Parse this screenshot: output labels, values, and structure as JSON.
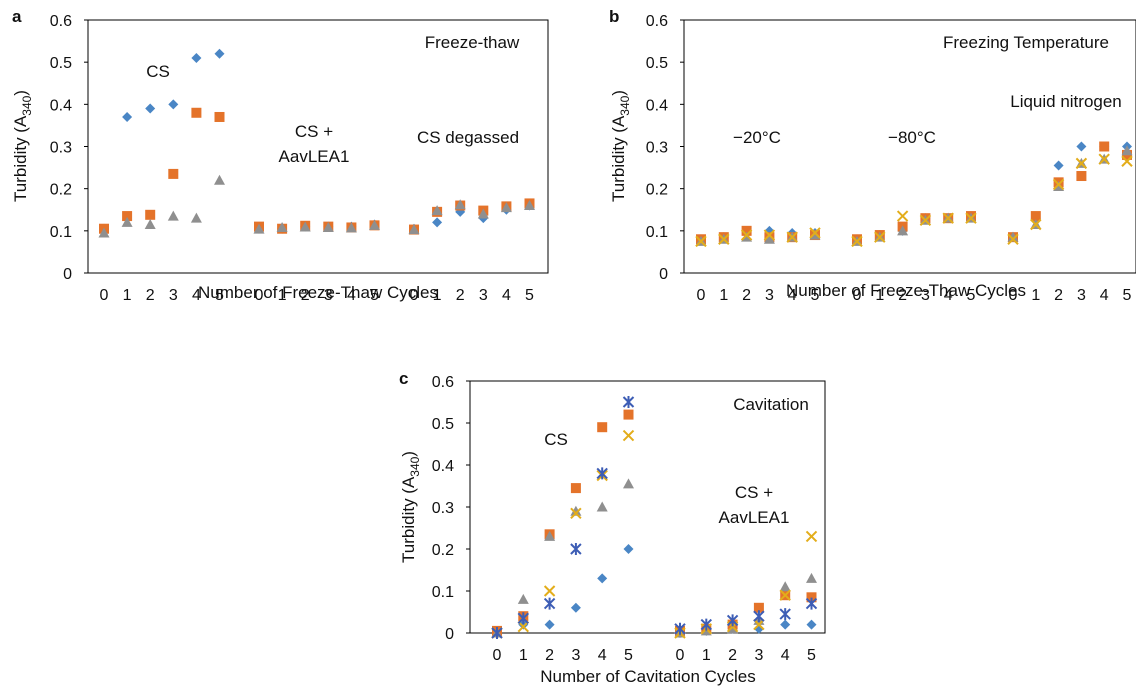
{
  "chart_data": [
    {
      "type": "scatter",
      "panel": "a",
      "ylabel": "Turbidity (A340)",
      "ylabel_main": "Turbidity (A",
      "ylabel_sub": "340",
      "ylabel_close": ")",
      "xlabel": "Number of Freeze-Thaw Cycles",
      "ylim": [
        0,
        0.6
      ],
      "yticks": [
        "0",
        "0.1",
        "0.2",
        "0.3",
        "0.4",
        "0.5",
        "0.6"
      ],
      "groups": [
        {
          "label": "CS",
          "x": [
            "0",
            "1",
            "2",
            "3",
            "4",
            "5"
          ]
        },
        {
          "label": "CS + AavLEA1",
          "x": [
            "0",
            "1",
            "2",
            "3",
            "4",
            "5"
          ]
        },
        {
          "label": "CS degassed",
          "x": [
            "0",
            "1",
            "2",
            "3",
            "4",
            "5"
          ]
        }
      ],
      "annotations": [
        "Freeze-thaw",
        "CS",
        "CS +",
        "AavLEA1",
        "CS degassed"
      ],
      "series": [
        {
          "marker": "diamond",
          "color": "#4a86c5",
          "values": [
            [
              0.105,
              0.37,
              0.39,
              0.4,
              0.51,
              0.52
            ],
            [
              0.105,
              0.105,
              0.11,
              0.11,
              0.11,
              0.115
            ],
            [
              0.105,
              0.12,
              0.145,
              0.13,
              0.15,
              0.16
            ]
          ]
        },
        {
          "marker": "square",
          "color": "#e4732a",
          "values": [
            [
              0.105,
              0.135,
              0.138,
              0.235,
              0.38,
              0.37
            ],
            [
              0.11,
              0.105,
              0.112,
              0.11,
              0.108,
              0.113
            ],
            [
              0.103,
              0.145,
              0.16,
              0.148,
              0.158,
              0.165
            ]
          ]
        },
        {
          "marker": "triangle",
          "color": "#8f8f8f",
          "values": [
            [
              0.095,
              0.12,
              0.115,
              0.135,
              0.13,
              0.22
            ],
            [
              0.104,
              0.108,
              0.109,
              0.108,
              0.107,
              0.113
            ],
            [
              0.103,
              0.148,
              0.162,
              0.14,
              0.155,
              0.16
            ]
          ]
        }
      ]
    },
    {
      "type": "scatter",
      "panel": "b",
      "ylabel": "Turbidity (A340)",
      "ylabel_main": "Turbidity (A",
      "ylabel_sub": "340",
      "ylabel_close": ")",
      "xlabel": "Number of Freeze-Thaw Cycles",
      "ylim": [
        0,
        0.6
      ],
      "yticks": [
        "0",
        "0.1",
        "0.2",
        "0.3",
        "0.4",
        "0.5",
        "0.6"
      ],
      "groups": [
        {
          "label": "−20°C",
          "x": [
            "0",
            "1",
            "2",
            "3",
            "4",
            "5"
          ]
        },
        {
          "label": "−80°C",
          "x": [
            "0",
            "1",
            "2",
            "3",
            "4",
            "5"
          ]
        },
        {
          "label": "Liquid nitrogen",
          "x": [
            "0",
            "1",
            "2",
            "3",
            "4",
            "5"
          ]
        }
      ],
      "annotations": [
        "Freezing Temperature",
        "Liquid nitrogen",
        "−20°C",
        "−80°C"
      ],
      "series": [
        {
          "marker": "diamond",
          "color": "#4a86c5",
          "values": [
            [
              0.08,
              0.085,
              0.095,
              0.1,
              0.095,
              0.095
            ],
            [
              0.08,
              0.09,
              0.1,
              0.13,
              0.13,
              0.135
            ],
            [
              0.085,
              0.13,
              0.255,
              0.3,
              0.3,
              0.3
            ]
          ]
        },
        {
          "marker": "square",
          "color": "#e4732a",
          "values": [
            [
              0.08,
              0.085,
              0.1,
              0.085,
              0.085,
              0.09
            ],
            [
              0.08,
              0.09,
              0.11,
              0.13,
              0.13,
              0.135
            ],
            [
              0.085,
              0.135,
              0.215,
              0.23,
              0.3,
              0.28
            ]
          ]
        },
        {
          "marker": "triangle",
          "color": "#8f8f8f",
          "values": [
            [
              0.075,
              0.08,
              0.085,
              0.08,
              0.085,
              0.09
            ],
            [
              0.075,
              0.085,
              0.1,
              0.125,
              0.13,
              0.13
            ],
            [
              0.085,
              0.115,
              0.205,
              0.26,
              0.27,
              0.29
            ]
          ]
        },
        {
          "marker": "x",
          "color": "#e3ad1a",
          "values": [
            [
              0.075,
              0.08,
              0.09,
              0.09,
              0.085,
              0.095
            ],
            [
              0.075,
              0.085,
              0.135,
              0.125,
              0.13,
              0.13
            ],
            [
              0.08,
              0.115,
              0.21,
              0.26,
              0.27,
              0.265
            ]
          ]
        }
      ]
    },
    {
      "type": "scatter",
      "panel": "c",
      "ylabel": "Turbidity (A340)",
      "ylabel_main": "Turbidity (A",
      "ylabel_sub": "340",
      "ylabel_close": ")",
      "xlabel": "Number of Cavitation Cycles",
      "ylim": [
        0,
        0.6
      ],
      "yticks": [
        "0",
        "0.1",
        "0.2",
        "0.3",
        "0.4",
        "0.5",
        "0.6"
      ],
      "groups": [
        {
          "label": "CS",
          "x": [
            "0",
            "1",
            "2",
            "3",
            "4",
            "5"
          ]
        },
        {
          "label": "CS + AavLEA1",
          "x": [
            "0",
            "1",
            "2",
            "3",
            "4",
            "5"
          ]
        }
      ],
      "annotations": [
        "Cavitation",
        "CS",
        "CS +",
        "AavLEA1"
      ],
      "series": [
        {
          "marker": "diamond",
          "color": "#4a86c5",
          "values": [
            [
              0.0,
              0.02,
              0.02,
              0.06,
              0.13,
              0.2
            ],
            [
              0.0,
              0.005,
              0.01,
              0.01,
              0.02,
              0.02
            ]
          ]
        },
        {
          "marker": "square",
          "color": "#e4732a",
          "values": [
            [
              0.005,
              0.04,
              0.235,
              0.345,
              0.49,
              0.52
            ],
            [
              0.005,
              0.01,
              0.02,
              0.06,
              0.09,
              0.085
            ]
          ]
        },
        {
          "marker": "triangle",
          "color": "#8f8f8f",
          "values": [
            [
              0.0,
              0.08,
              0.23,
              0.29,
              0.3,
              0.355
            ],
            [
              0.0,
              0.005,
              0.01,
              0.03,
              0.11,
              0.13
            ]
          ]
        },
        {
          "marker": "x",
          "color": "#e3ad1a",
          "values": [
            [
              0.0,
              0.015,
              0.1,
              0.285,
              0.375,
              0.47
            ],
            [
              0.0,
              0.01,
              0.015,
              0.02,
              0.09,
              0.23
            ]
          ]
        },
        {
          "marker": "star",
          "color": "#3d5db5",
          "values": [
            [
              0.0,
              0.035,
              0.07,
              0.2,
              0.38,
              0.55
            ],
            [
              0.01,
              0.02,
              0.03,
              0.04,
              0.045,
              0.07
            ]
          ]
        }
      ]
    }
  ]
}
